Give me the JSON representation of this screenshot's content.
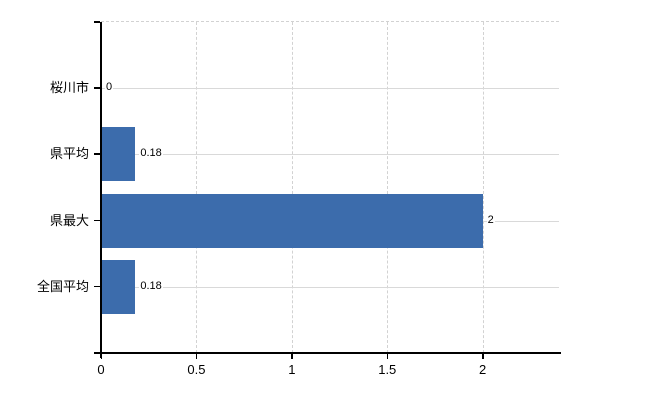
{
  "chart_data": {
    "type": "bar",
    "orientation": "horizontal",
    "title": "",
    "xlabel": "",
    "ylabel": "",
    "categories": [
      "桜川市",
      "県平均",
      "県最大",
      "全国平均"
    ],
    "values": [
      0,
      0.18,
      2,
      0.18
    ],
    "value_labels": [
      "0",
      "0.18",
      "2",
      "0.18"
    ],
    "xticks": [
      0,
      0.5,
      1,
      1.5,
      2
    ],
    "xtick_labels": [
      "0",
      "0.5",
      "1",
      "1.5",
      "2"
    ],
    "xlim": [
      0,
      2.4
    ],
    "grid": true,
    "legend": false,
    "bar_color": "#3c6cac",
    "grid_color_solid": "#d9d9d9",
    "grid_color_dashed": "#d2d2d2",
    "axis_color": "#000000",
    "text_color": "#000000"
  }
}
